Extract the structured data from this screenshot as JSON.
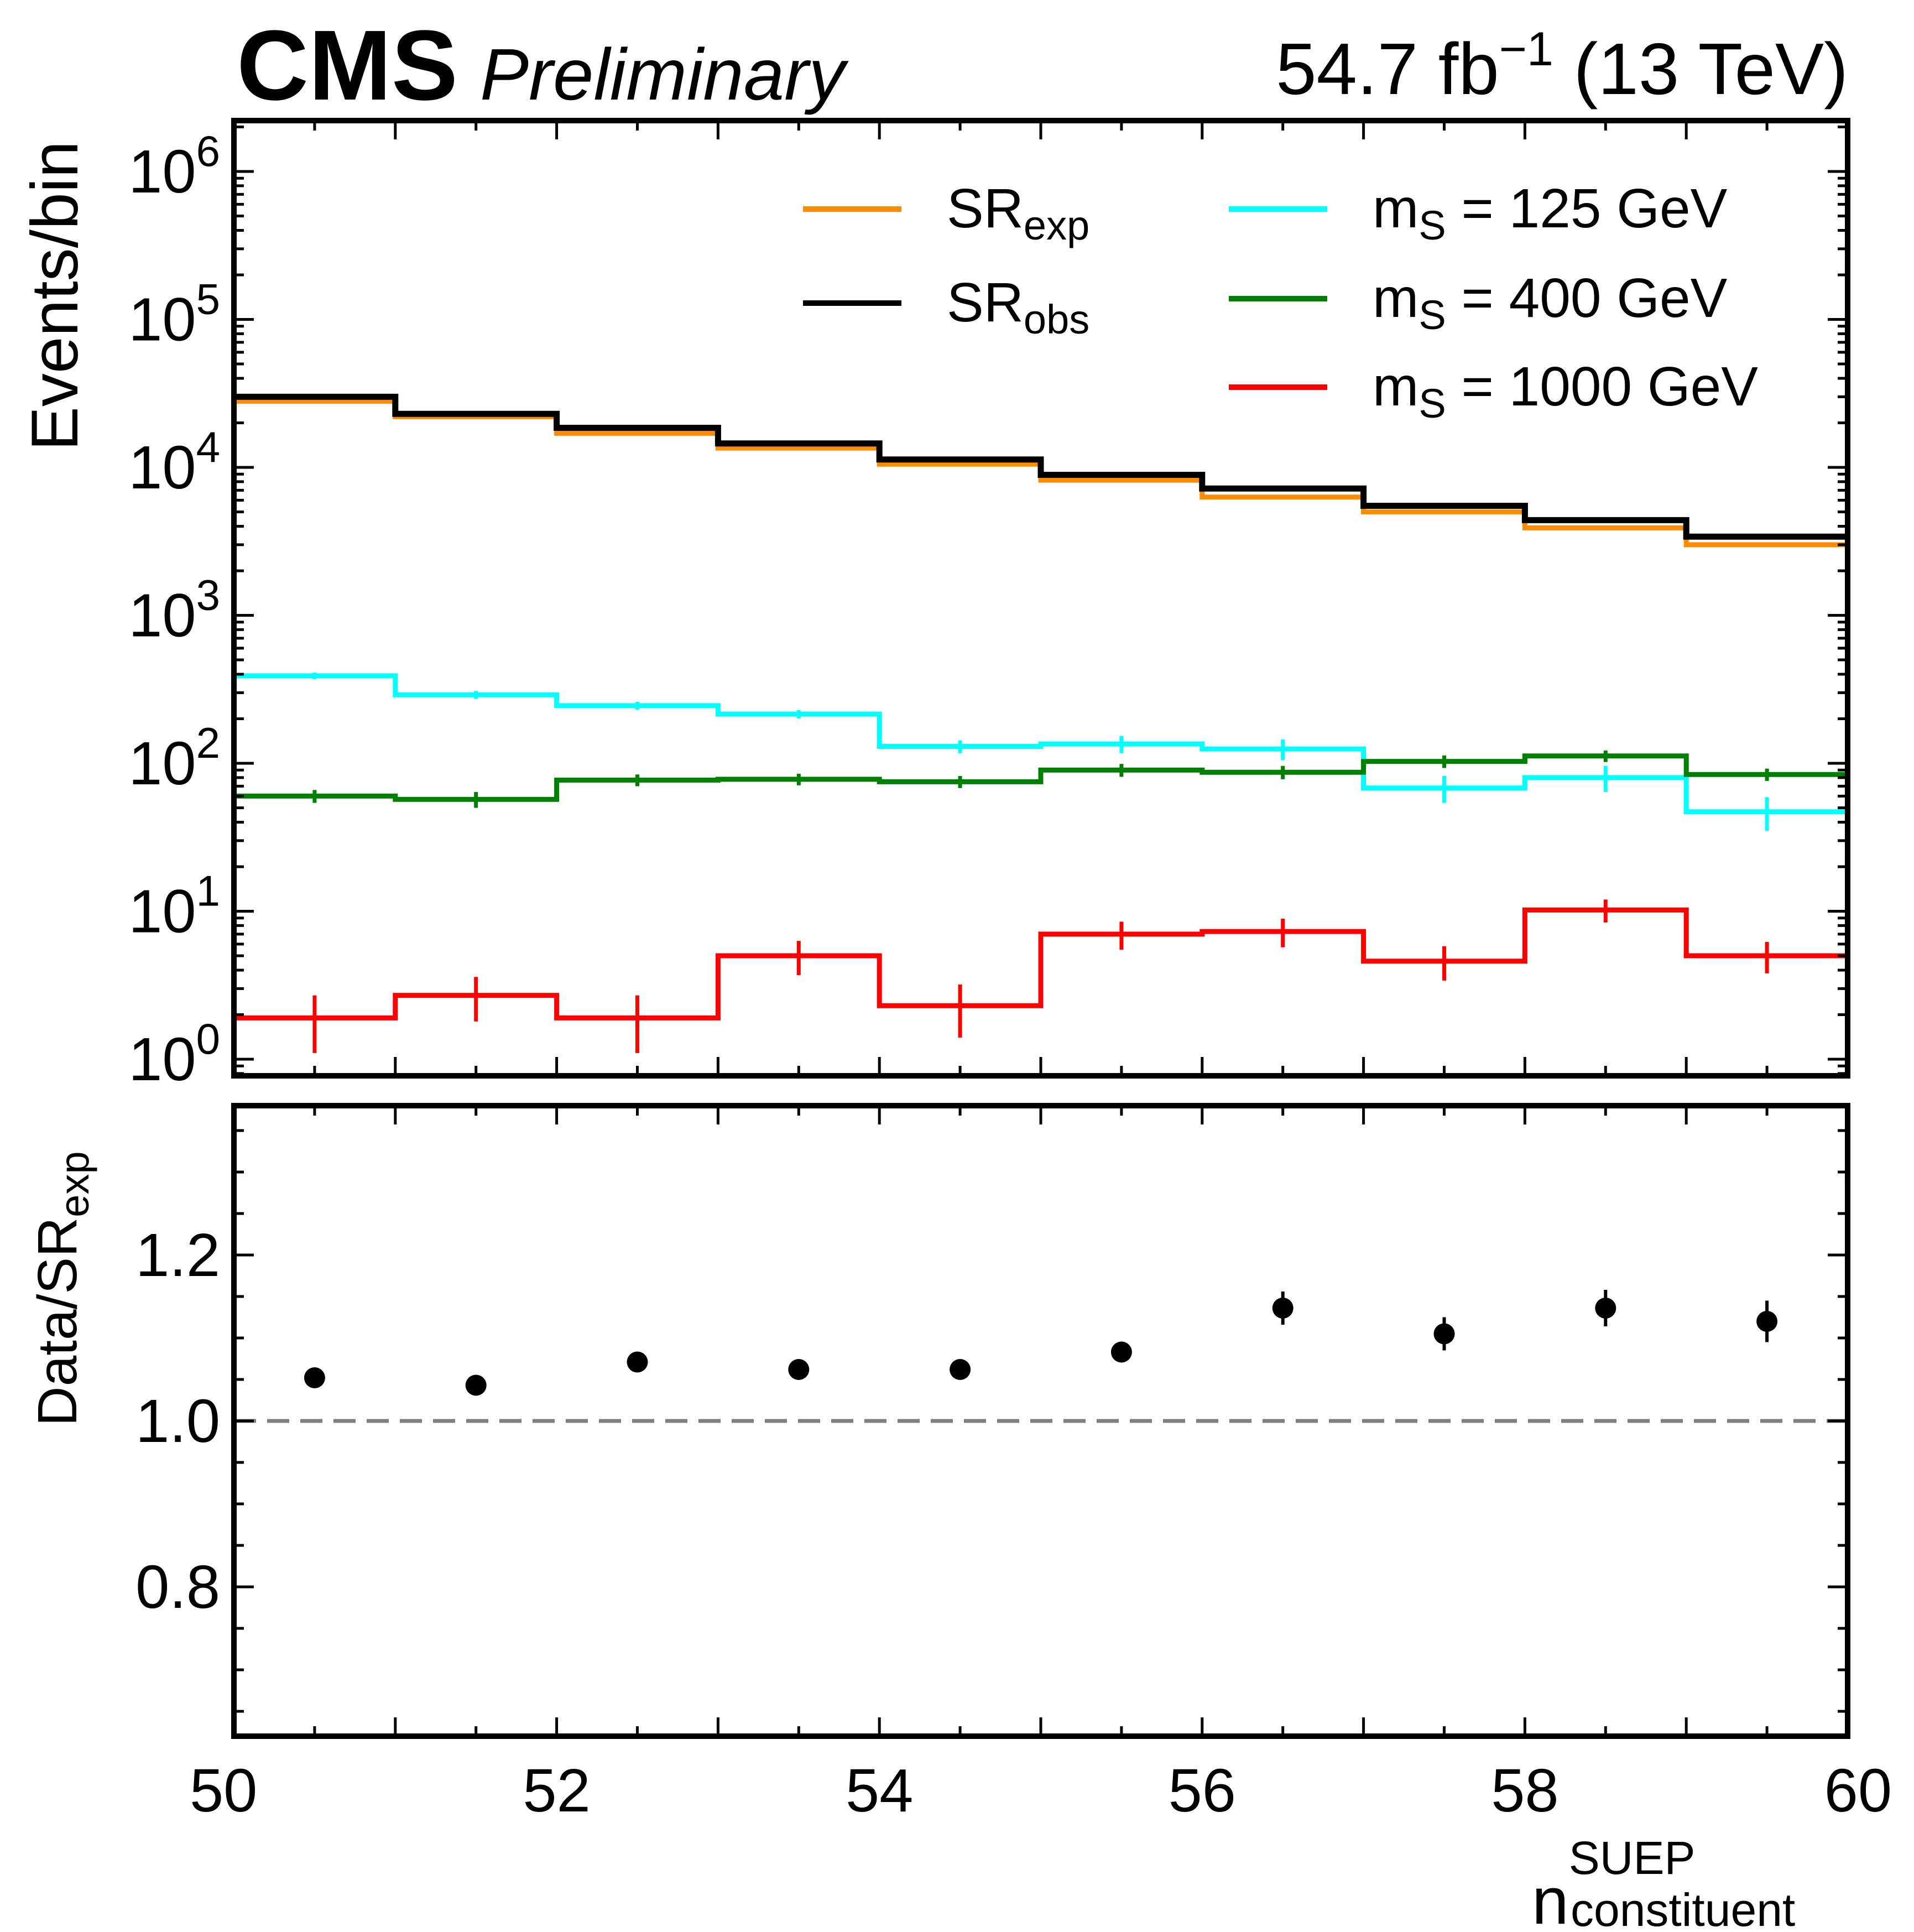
{
  "header": {
    "experiment": "CMS",
    "status": "Preliminary",
    "lumi_prefix": "54.7 fb",
    "lumi_exp": "−1",
    "energy": " (13 TeV)"
  },
  "axes": {
    "top_ylabel": "Events/bin",
    "bottom_ylabel_main": "Data/SR",
    "bottom_ylabel_sub": "exp",
    "xlabel_main": "n",
    "xlabel_sup": "SUEP",
    "xlabel_sub": "constituent"
  },
  "colors": {
    "sr_exp": "#ff8c00",
    "sr_obs": "#000000",
    "ms125": "#00ffff",
    "ms400": "#008000",
    "ms1000": "#ff0000",
    "ratio_ref": "#808080"
  },
  "legend": [
    {
      "key": "sr_exp",
      "main": "SR",
      "sub": "exp",
      "suffix": ""
    },
    {
      "key": "sr_obs",
      "main": "SR",
      "sub": "obs",
      "suffix": ""
    },
    {
      "key": "ms125",
      "main": "m",
      "sub": "S",
      "suffix": " = 125 GeV"
    },
    {
      "key": "ms400",
      "main": "m",
      "sub": "S",
      "suffix": " = 400 GeV"
    },
    {
      "key": "ms1000",
      "main": "m",
      "sub": "S",
      "suffix": " = 1000 GeV"
    }
  ],
  "chart_data": [
    {
      "type": "line",
      "drawstyle": "steps",
      "scale": "log",
      "xlim": [
        50,
        60
      ],
      "ylim": [
        0.5,
        2000000
      ],
      "yticks": [
        "10^0",
        "10^1",
        "10^2",
        "10^3",
        "10^4",
        "10^5",
        "10^6"
      ],
      "ylabel": "Events/bin",
      "bin_edges": [
        50,
        51,
        52,
        53,
        54,
        55,
        56,
        57,
        58,
        59,
        60
      ],
      "series": [
        {
          "key": "sr_exp",
          "name": "SR_exp",
          "values": [
            28000,
            22000,
            17000,
            13500,
            10500,
            8200,
            6300,
            5000,
            3900,
            3000
          ]
        },
        {
          "key": "sr_obs",
          "name": "SR_obs",
          "values": [
            30000,
            23000,
            18500,
            14500,
            11300,
            8900,
            7200,
            5500,
            4400,
            3400
          ]
        },
        {
          "key": "ms125",
          "name": "m_S = 125 GeV",
          "values": [
            390,
            290,
            245,
            215,
            130,
            135,
            125,
            68,
            80,
            47
          ],
          "errors": [
            20,
            18,
            15,
            14,
            13,
            18,
            20,
            14,
            16,
            12
          ]
        },
        {
          "key": "ms400",
          "name": "m_S = 400 GeV",
          "values": [
            60,
            57,
            77,
            78,
            75,
            90,
            87,
            103,
            112,
            84
          ],
          "errors": [
            6,
            7,
            7,
            7,
            7,
            9,
            9,
            10,
            10,
            8
          ]
        },
        {
          "key": "ms1000",
          "name": "m_S = 1000 GeV",
          "values": [
            1.9,
            2.7,
            1.9,
            5.0,
            2.3,
            7.0,
            7.3,
            4.6,
            10.2,
            5.0
          ],
          "errors": [
            0.8,
            0.9,
            0.8,
            1.3,
            0.9,
            1.5,
            1.6,
            1.2,
            1.8,
            1.2
          ]
        }
      ]
    },
    {
      "type": "scatter",
      "xlim": [
        50,
        60
      ],
      "ylim": [
        0.63,
        1.37
      ],
      "yticks": [
        0.8,
        1.0,
        1.2
      ],
      "ylabel": "Data/SR_exp",
      "xticks": [
        50,
        52,
        54,
        56,
        58,
        60
      ],
      "reference_line": 1.0,
      "x": [
        50.5,
        51.5,
        52.5,
        53.5,
        54.5,
        55.5,
        56.5,
        57.5,
        58.5,
        59.5
      ],
      "y": [
        1.052,
        1.043,
        1.071,
        1.062,
        1.062,
        1.083,
        1.136,
        1.105,
        1.136,
        1.12
      ],
      "yerr": [
        0.006,
        0.007,
        0.008,
        0.009,
        0.01,
        0.012,
        0.02,
        0.02,
        0.022,
        0.025
      ]
    }
  ]
}
